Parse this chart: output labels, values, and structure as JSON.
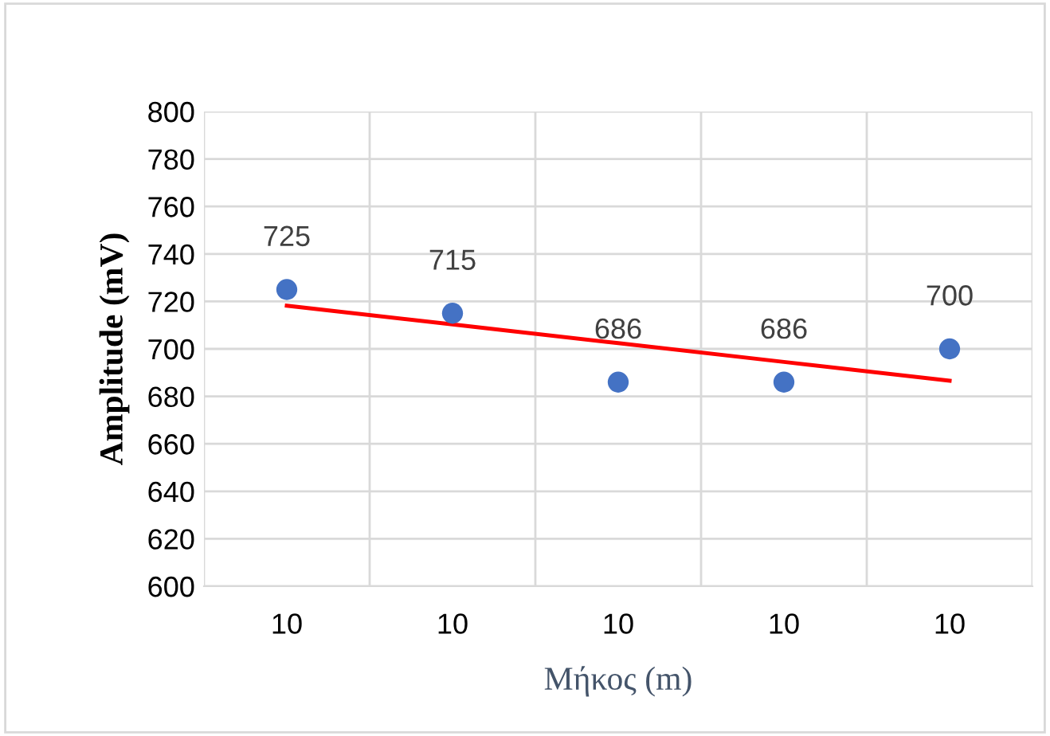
{
  "chart_data": {
    "type": "scatter",
    "xlabel": "Μήκος (m)",
    "ylabel": "Amplitude (mV)",
    "categories": [
      "10",
      "10",
      "10",
      "10",
      "10"
    ],
    "series": [
      {
        "color": "#4472c4",
        "values": [
          725,
          715,
          686,
          686,
          700
        ],
        "value_labels": [
          "725",
          "715",
          "686",
          "686",
          "700"
        ],
        "marker": "circle"
      },
      {
        "type": "line",
        "color": "#ff0000",
        "values": [
          718.2,
          710.3,
          702.4,
          694.5,
          686.6
        ],
        "marker": "none",
        "line_style": "solid"
      }
    ],
    "ylim": [
      600,
      800
    ],
    "yticks": [
      600,
      620,
      640,
      660,
      680,
      700,
      720,
      740,
      760,
      780,
      800
    ],
    "grid": true
  }
}
